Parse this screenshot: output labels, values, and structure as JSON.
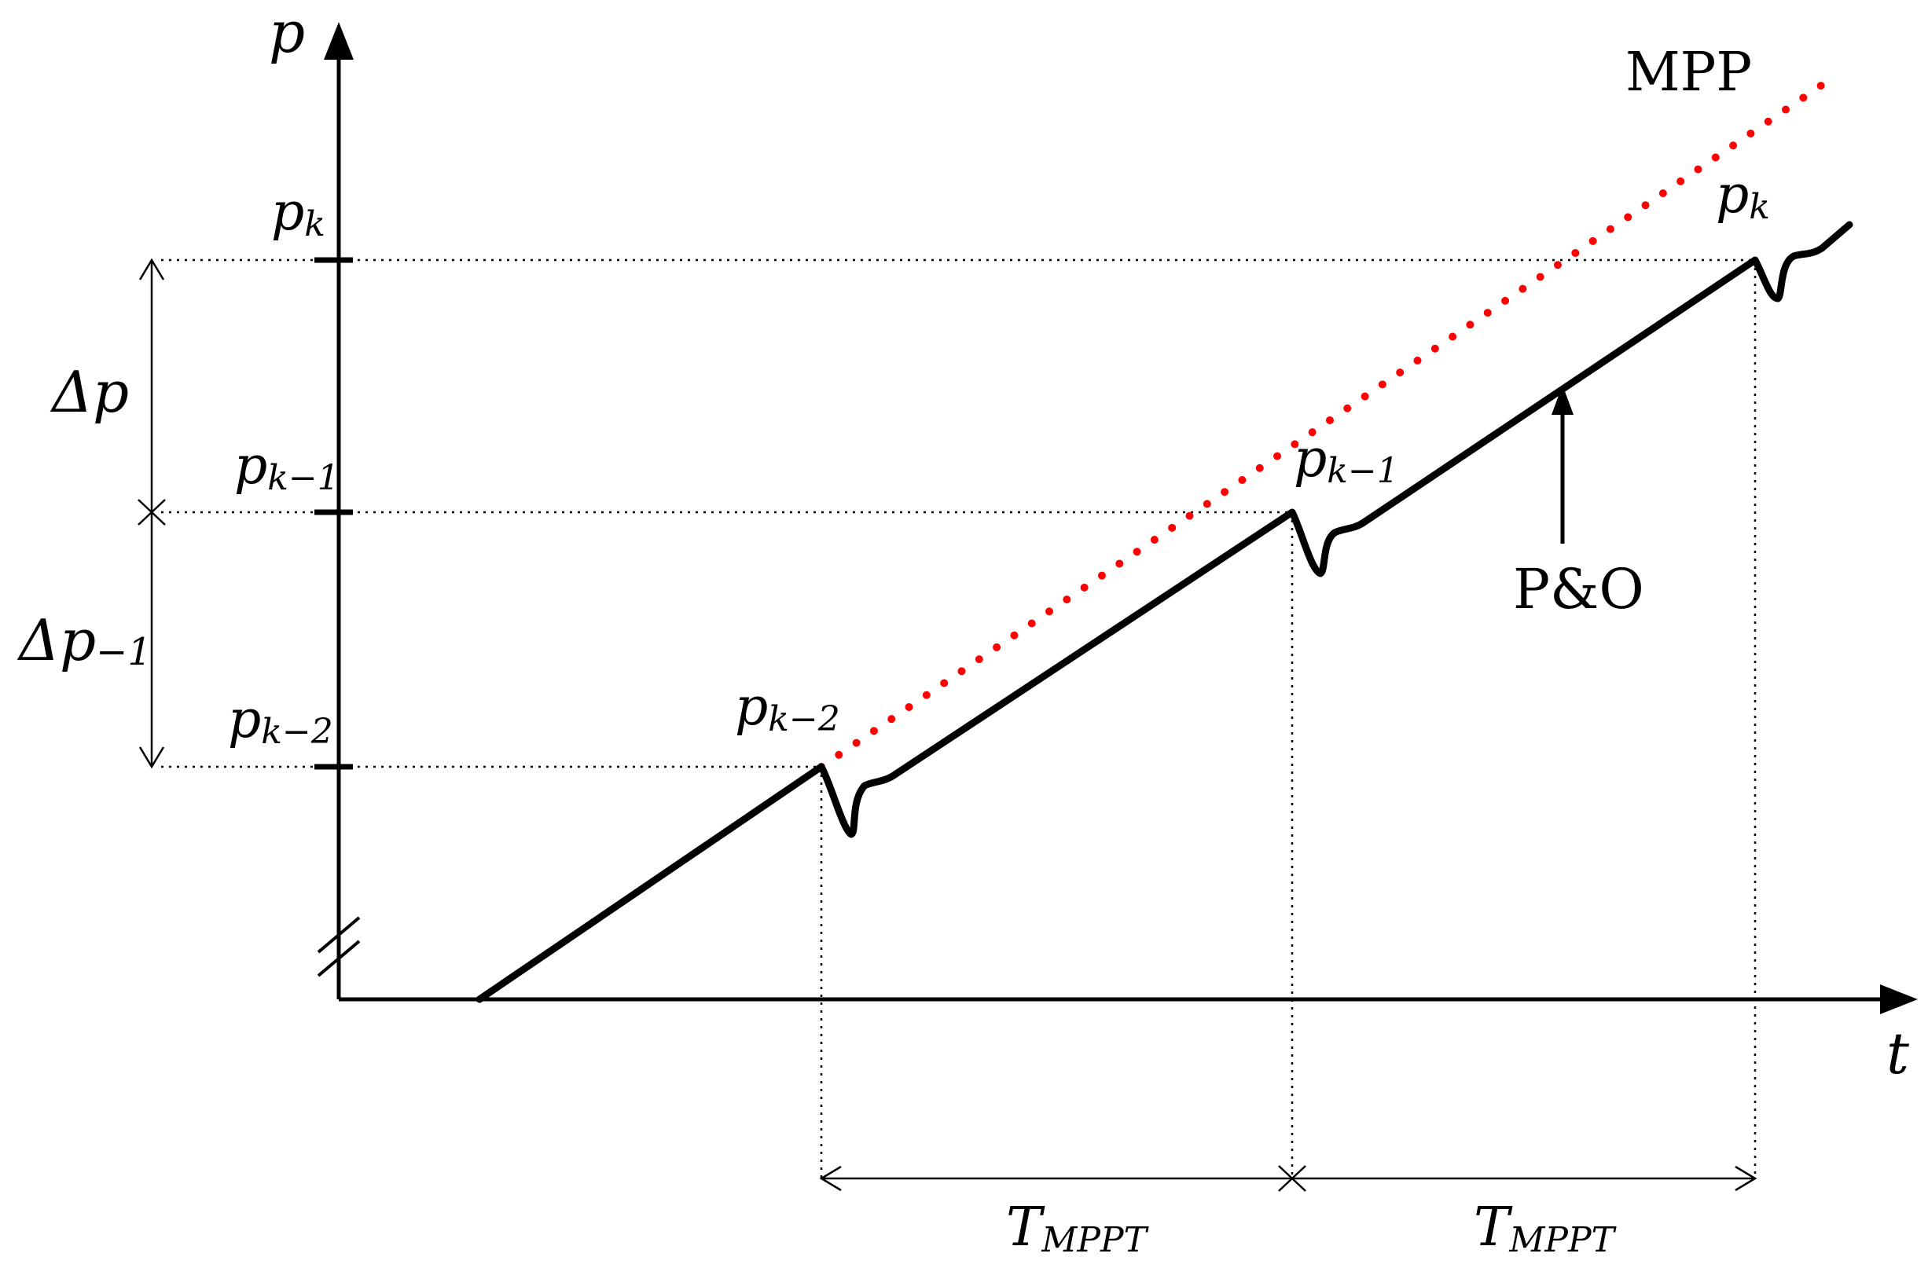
{
  "labels": {
    "y_axis": "p",
    "x_axis": "t",
    "mpp": "MPP",
    "po": "P&O",
    "pk_axis": {
      "base": "p",
      "sub": "k"
    },
    "pk1_axis": {
      "base": "p",
      "sub": "k−1"
    },
    "pk2_axis": {
      "base": "p",
      "sub": "k−2"
    },
    "pk2_curve": {
      "base": "p",
      "sub": "k−2"
    },
    "pk1_curve": {
      "base": "p",
      "sub": "k−1"
    },
    "pk_curve": {
      "base": "p",
      "sub": "k"
    },
    "delta_p": "Δp",
    "delta_p1": {
      "base": "Δp",
      "sub": "−1"
    },
    "t_mppt_1": {
      "base": "T",
      "sub": "MPPT"
    },
    "t_mppt_2": {
      "base": "T",
      "sub": "MPPT"
    }
  },
  "colors": {
    "mpp": "#ff0000",
    "curve": "#000000",
    "guides": "#000000"
  }
}
